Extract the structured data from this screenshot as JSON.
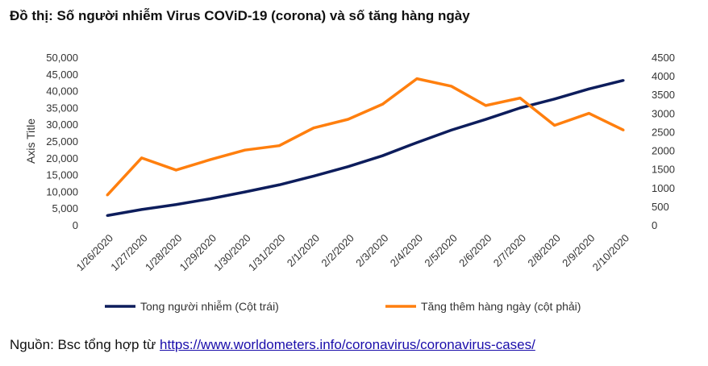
{
  "title": "Đồ thị: Số người nhiễm Virus COViD-19 (corona) và số tăng hàng ngày",
  "source": {
    "prefix": "Nguồn: Bsc tổng hợp từ ",
    "link": "https://www.worldometers.info/coronavirus/coronavirus-cases/"
  },
  "chart_data": {
    "type": "line",
    "ylabel": "Axis Title",
    "categories": [
      "1/26/2020",
      "1/27/2020",
      "1/28/2020",
      "1/29/2020",
      "1/30/2020",
      "1/31/2020",
      "2/1/2020",
      "2/2/2020",
      "2/3/2020",
      "2/4/2020",
      "2/5/2020",
      "2/6/2020",
      "2/7/2020",
      "2/8/2020",
      "2/9/2020",
      "2/10/2020"
    ],
    "ylim_left": [
      0,
      50000
    ],
    "yticks_left": [
      "0",
      "5,000",
      "10,000",
      "15,000",
      "20,000",
      "25,000",
      "30,000",
      "35,000",
      "40,000",
      "45,000",
      "50,000"
    ],
    "ylim_right": [
      0,
      4500
    ],
    "yticks_right": [
      "0",
      "500",
      "1000",
      "1500",
      "2000",
      "2500",
      "3000",
      "3500",
      "4000",
      "4500"
    ],
    "grid": false,
    "legend": "bottom",
    "series": [
      {
        "name": "Tong người nhiễm (Cột trái)",
        "axis": "left",
        "color": "#0d1d5c",
        "values": [
          2794,
          4593,
          6065,
          7818,
          9826,
          11953,
          14557,
          17391,
          20630,
          24554,
          28276,
          31481,
          34886,
          37558,
          40553,
          43099
        ]
      },
      {
        "name": "Tăng thêm hàng ngày (cột phải)",
        "axis": "right",
        "color": "#ff7f0e",
        "values": [
          800,
          1799,
          1472,
          1753,
          2008,
          2127,
          2604,
          2834,
          3239,
          3924,
          3722,
          3205,
          3405,
          2672,
          2995,
          2546
        ]
      }
    ]
  }
}
